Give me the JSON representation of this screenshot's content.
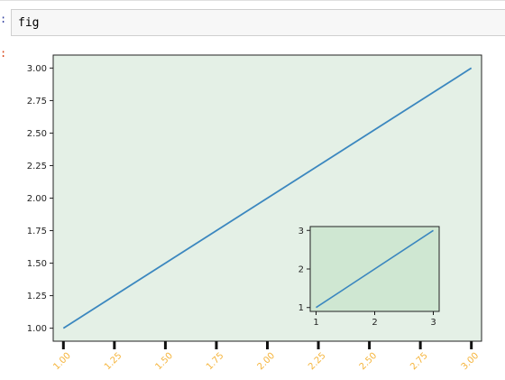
{
  "cell": {
    "code": "fig",
    "in_prompt_char": ":",
    "out_prompt_char": ":"
  },
  "chart_data": [
    {
      "type": "line",
      "x": [
        1.0,
        3.0
      ],
      "series": [
        {
          "values": [
            1.0,
            3.0
          ],
          "color": "#3b87bf"
        }
      ],
      "xlim": [
        0.95,
        3.05
      ],
      "ylim": [
        0.9,
        3.1
      ],
      "xticks": [
        1.0,
        1.25,
        1.5,
        1.75,
        2.0,
        2.25,
        2.5,
        2.75,
        3.0
      ],
      "xtick_labels": [
        "1.00",
        "1.25",
        "1.50",
        "1.75",
        "2.00",
        "2.25",
        "2.50",
        "2.75",
        "3.00"
      ],
      "yticks": [
        1.0,
        1.25,
        1.5,
        1.75,
        2.0,
        2.25,
        2.5,
        2.75,
        3.0
      ],
      "ytick_labels": [
        "1.00",
        "1.25",
        "1.50",
        "1.75",
        "2.00",
        "2.25",
        "2.50",
        "2.75",
        "3.00"
      ],
      "background": "#e4f0e6",
      "tick_label_color_x": "#f5b43b",
      "tick_label_rotation_x": 45,
      "grid": false
    },
    {
      "type": "line",
      "x": [
        1,
        3
      ],
      "series": [
        {
          "values": [
            1,
            3
          ],
          "color": "#3b87bf"
        }
      ],
      "xlim": [
        0.9,
        3.1
      ],
      "ylim": [
        0.9,
        3.1
      ],
      "xticks": [
        1,
        2,
        3
      ],
      "xtick_labels": [
        "1",
        "2",
        "3"
      ],
      "yticks": [
        1,
        2,
        3
      ],
      "ytick_labels": [
        "1",
        "2",
        "3"
      ],
      "background": "#cfe7d2",
      "grid": false
    }
  ]
}
